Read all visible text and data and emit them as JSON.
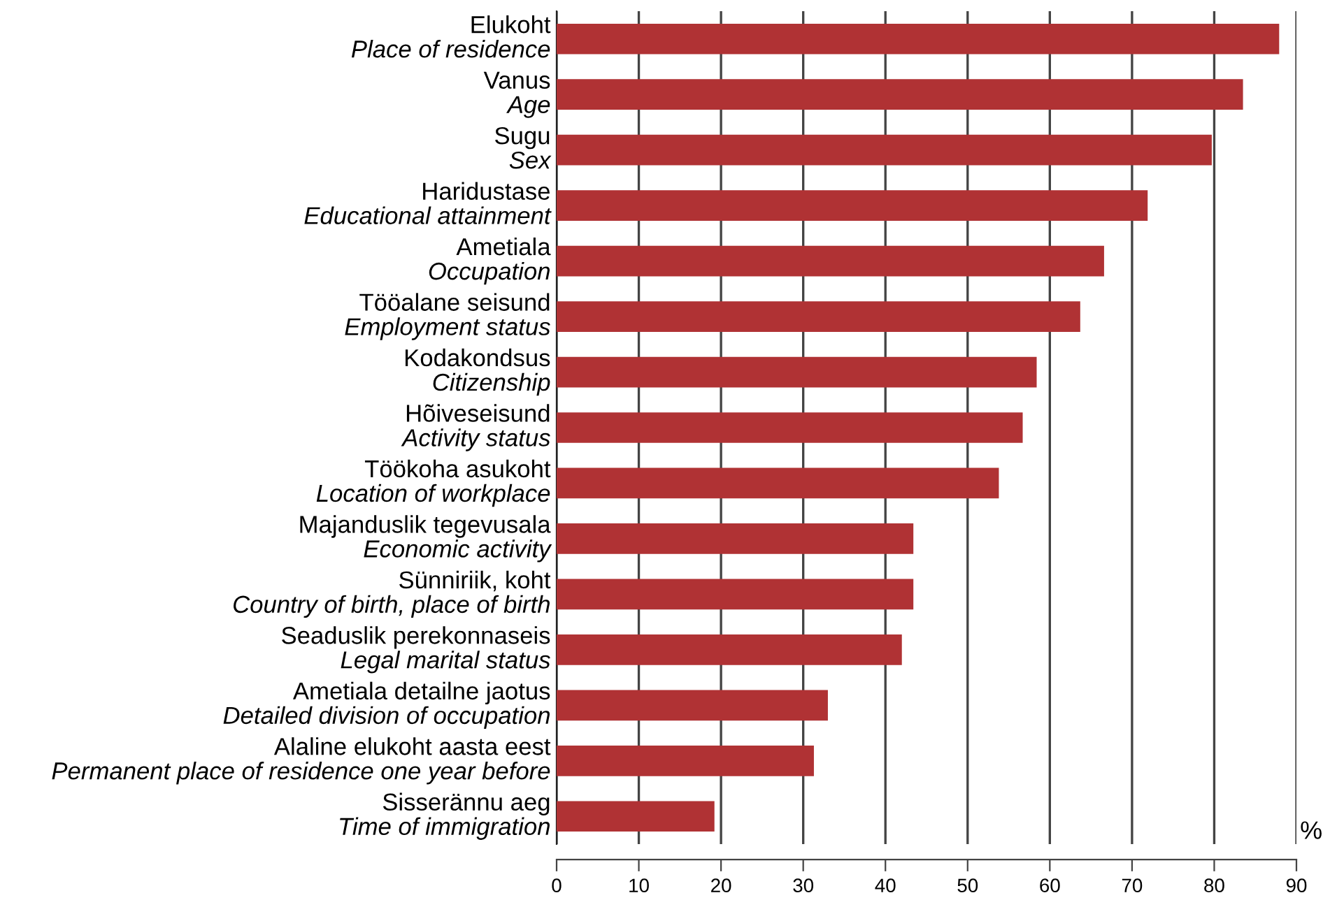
{
  "chart_data": {
    "type": "bar",
    "orientation": "horizontal",
    "xlabel": "%",
    "categories": [
      "Elukoht\nPlace of residence",
      "Vanus\nAge",
      "Sugu\nSex",
      "Haridustase\nEducational attainment",
      "Ametiala\nOccupation",
      "Tööalane seisund\nEmployment status",
      "Kodakondsus\nCitizenship",
      "Hõiveseisund\nActivity status",
      "Töökoha asukoht\nLocation of workplace",
      "Majanduslik tegevusala\nEconomic activity",
      "Sünniriik, koht\nCountry of birth, place of birth",
      "Seaduslik perekonnaseis\nLegal marital status",
      "Ametiala detailne jaotus\nDetailed division of occupation",
      "Alaline elukoht aasta eest\nPermanent place of residence one year before",
      "Sisserännu aeg\nTime of immigration"
    ],
    "values": [
      87.9,
      83.5,
      79.7,
      71.9,
      66.6,
      63.7,
      58.4,
      56.7,
      53.8,
      43.4,
      43.4,
      42.0,
      33.0,
      31.3,
      19.2
    ],
    "color": "#b03234",
    "xlim": [
      0,
      90
    ],
    "xticks": [
      0,
      10,
      20,
      30,
      40,
      50,
      60,
      70,
      80,
      90
    ],
    "grid": "x",
    "legend": false
  }
}
